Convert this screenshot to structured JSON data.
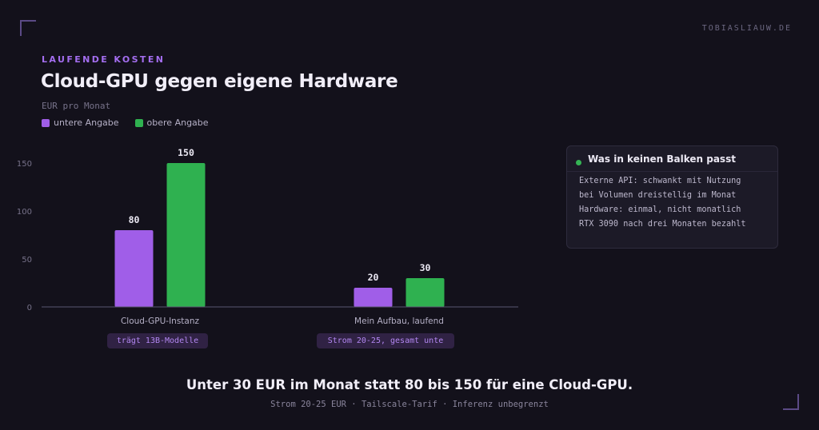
{
  "site": "TOBIASLIAUW.DE",
  "eyebrow": "LAUFENDE KOSTEN",
  "title": "Cloud-GPU gegen eigene Hardware",
  "subtitle": "EUR pro Monat",
  "colors": {
    "lower": "#a05ee8",
    "upper": "#2fb150",
    "background": "#13111b"
  },
  "chart_data": {
    "type": "bar",
    "categories": [
      "Cloud-GPU-Instanz",
      "Mein Aufbau, laufend"
    ],
    "series": [
      {
        "name": "untere Angabe",
        "values": [
          80,
          20
        ]
      },
      {
        "name": "obere Angabe",
        "values": [
          150,
          30
        ]
      }
    ],
    "ylim": [
      0,
      150
    ],
    "yticks": [
      0,
      50,
      100,
      150
    ],
    "data_labels": [
      "80",
      "150",
      "20",
      "30"
    ],
    "legend": "top-left",
    "grid": false
  },
  "tags": [
    "trägt 13B-Modelle",
    "Strom 20-25, gesamt unte"
  ],
  "note": {
    "title": "Was in keinen Balken passt",
    "lines": [
      "Externe API: schwankt mit Nutzung",
      "bei Volumen dreistellig im Monat",
      "Hardware: einmal, nicht monatlich",
      "RTX 3090 nach drei Monaten bezahlt"
    ]
  },
  "headline": "Unter 30 EUR im Monat statt 80 bis 150 für eine Cloud-GPU.",
  "footnote": "Strom 20-25 EUR · Tailscale-Tarif · Inferenz unbegrenzt"
}
